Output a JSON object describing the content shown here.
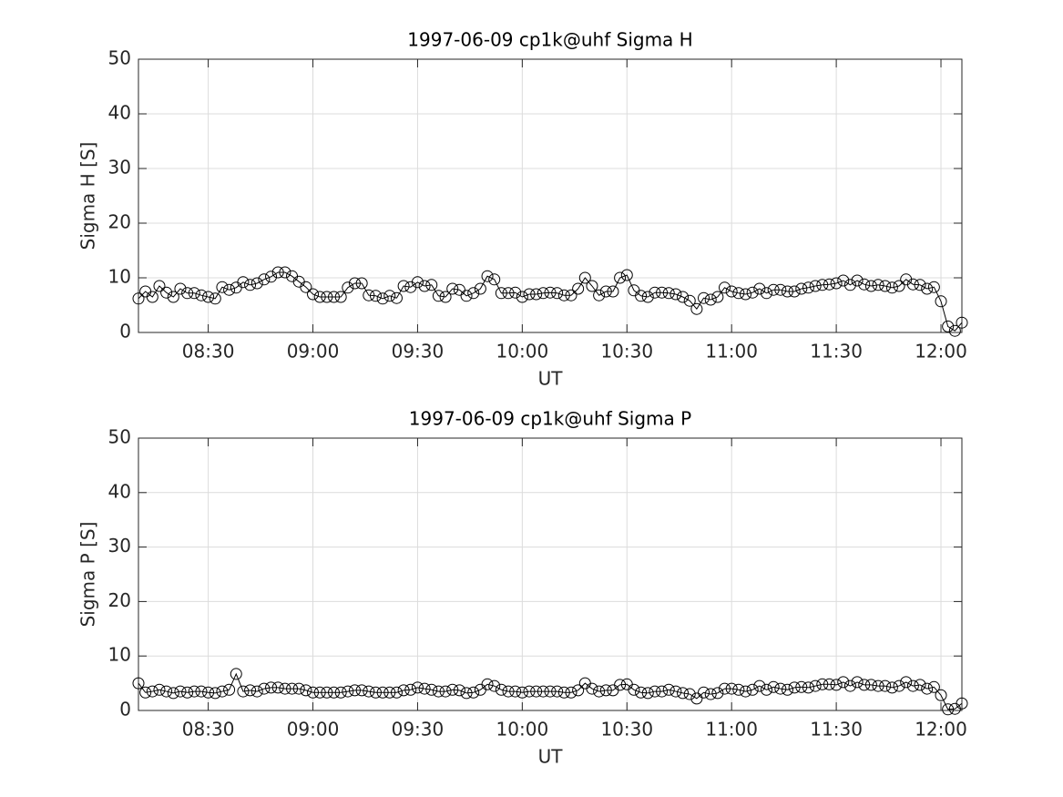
{
  "chart_data": [
    {
      "type": "line",
      "title": "1997-06-09  cp1k@uhf Sigma H",
      "x_label": "UT",
      "y_label": "Sigma H [S]",
      "x": [
        "08:10",
        "08:12",
        "08:14",
        "08:16",
        "08:18",
        "08:20",
        "08:22",
        "08:24",
        "08:26",
        "08:28",
        "08:30",
        "08:32",
        "08:34",
        "08:36",
        "08:38",
        "08:40",
        "08:42",
        "08:44",
        "08:46",
        "08:48",
        "08:50",
        "08:52",
        "08:54",
        "08:56",
        "08:58",
        "09:00",
        "09:02",
        "09:04",
        "09:06",
        "09:08",
        "09:10",
        "09:12",
        "09:14",
        "09:16",
        "09:18",
        "09:20",
        "09:22",
        "09:24",
        "09:26",
        "09:28",
        "09:30",
        "09:32",
        "09:34",
        "09:36",
        "09:38",
        "09:40",
        "09:42",
        "09:44",
        "09:46",
        "09:48",
        "09:50",
        "09:52",
        "09:54",
        "09:56",
        "09:58",
        "10:00",
        "10:02",
        "10:04",
        "10:06",
        "10:08",
        "10:10",
        "10:12",
        "10:14",
        "10:16",
        "10:18",
        "10:20",
        "10:22",
        "10:24",
        "10:26",
        "10:28",
        "10:30",
        "10:32",
        "10:34",
        "10:36",
        "10:38",
        "10:40",
        "10:42",
        "10:44",
        "10:46",
        "10:48",
        "10:50",
        "10:52",
        "10:54",
        "10:56",
        "10:58",
        "11:00",
        "11:02",
        "11:04",
        "11:06",
        "11:08",
        "11:10",
        "11:12",
        "11:14",
        "11:16",
        "11:18",
        "11:20",
        "11:22",
        "11:24",
        "11:26",
        "11:28",
        "11:30",
        "11:32",
        "11:34",
        "11:36",
        "11:38",
        "11:40",
        "11:42",
        "11:44",
        "11:46",
        "11:48",
        "11:50",
        "11:52",
        "11:54",
        "11:56",
        "11:58",
        "12:00",
        "12:02",
        "12:04",
        "12:06"
      ],
      "values": [
        6.2,
        7.5,
        6.5,
        8.5,
        7.3,
        6.5,
        8,
        7.2,
        7.2,
        6.8,
        6.5,
        6.2,
        8.3,
        7.8,
        8.2,
        9.2,
        8.7,
        9,
        9.7,
        10.2,
        11,
        11,
        10.3,
        9.3,
        8.3,
        7,
        6.5,
        6.5,
        6.5,
        6.5,
        8.2,
        9,
        9,
        6.8,
        6.7,
        6.2,
        6.7,
        6.3,
        8.5,
        8.3,
        9.2,
        8.5,
        8.7,
        6.7,
        6.5,
        8,
        7.8,
        6.7,
        7.2,
        8,
        10.3,
        9.7,
        7.2,
        7.2,
        7.3,
        6.5,
        7,
        7,
        7.2,
        7.3,
        7.2,
        6.8,
        6.8,
        8,
        10,
        8.5,
        6.8,
        7.5,
        7.5,
        10,
        10.5,
        7.7,
        6.7,
        6.5,
        7.3,
        7.3,
        7.2,
        7,
        6.5,
        5.8,
        4.3,
        6.3,
        6,
        6.5,
        8.2,
        7.5,
        7.2,
        7,
        7.3,
        8,
        7.2,
        7.8,
        7.8,
        7.5,
        7.5,
        8,
        8.2,
        8.5,
        8.7,
        8.8,
        9,
        9.5,
        8.7,
        9.5,
        8.8,
        8.5,
        8.7,
        8.5,
        8.2,
        8.5,
        9.7,
        8.8,
        8.7,
        8,
        8.3,
        5.7,
        1.1,
        0.3,
        1.8
      ],
      "color": "#000000",
      "marker": "o",
      "xlim": [
        "08:10",
        "12:06"
      ],
      "xticks": [
        "08:30",
        "09:00",
        "09:30",
        "10:00",
        "10:30",
        "11:00",
        "11:30",
        "12:00"
      ],
      "ylim": [
        0,
        50
      ],
      "yticks": [
        0,
        10,
        20,
        30,
        40,
        50
      ],
      "grid": true
    },
    {
      "type": "line",
      "title": "1997-06-09  cp1k@uhf Sigma P",
      "x_label": "UT",
      "y_label": "Sigma P [S]",
      "x": [
        "08:10",
        "08:12",
        "08:14",
        "08:16",
        "08:18",
        "08:20",
        "08:22",
        "08:24",
        "08:26",
        "08:28",
        "08:30",
        "08:32",
        "08:34",
        "08:36",
        "08:38",
        "08:40",
        "08:42",
        "08:44",
        "08:46",
        "08:48",
        "08:50",
        "08:52",
        "08:54",
        "08:56",
        "08:58",
        "09:00",
        "09:02",
        "09:04",
        "09:06",
        "09:08",
        "09:10",
        "09:12",
        "09:14",
        "09:16",
        "09:18",
        "09:20",
        "09:22",
        "09:24",
        "09:26",
        "09:28",
        "09:30",
        "09:32",
        "09:34",
        "09:36",
        "09:38",
        "09:40",
        "09:42",
        "09:44",
        "09:46",
        "09:48",
        "09:50",
        "09:52",
        "09:54",
        "09:56",
        "09:58",
        "10:00",
        "10:02",
        "10:04",
        "10:06",
        "10:08",
        "10:10",
        "10:12",
        "10:14",
        "10:16",
        "10:18",
        "10:20",
        "10:22",
        "10:24",
        "10:26",
        "10:28",
        "10:30",
        "10:32",
        "10:34",
        "10:36",
        "10:38",
        "10:40",
        "10:42",
        "10:44",
        "10:46",
        "10:48",
        "10:50",
        "10:52",
        "10:54",
        "10:56",
        "10:58",
        "11:00",
        "11:02",
        "11:04",
        "11:06",
        "11:08",
        "11:10",
        "11:12",
        "11:14",
        "11:16",
        "11:18",
        "11:20",
        "11:22",
        "11:24",
        "11:26",
        "11:28",
        "11:30",
        "11:32",
        "11:34",
        "11:36",
        "11:38",
        "11:40",
        "11:42",
        "11:44",
        "11:46",
        "11:48",
        "11:50",
        "11:52",
        "11:54",
        "11:56",
        "11:58",
        "12:00",
        "12:02",
        "12:04",
        "12:06"
      ],
      "values": [
        5,
        3.3,
        3.5,
        3.8,
        3.5,
        3.2,
        3.5,
        3.3,
        3.5,
        3.5,
        3.3,
        3.2,
        3.5,
        3.8,
        6.7,
        3.5,
        3.7,
        3.5,
        4,
        4.2,
        4.2,
        4,
        4,
        4,
        3.7,
        3.3,
        3.3,
        3.3,
        3.3,
        3.3,
        3.5,
        3.7,
        3.7,
        3.5,
        3.3,
        3.3,
        3.3,
        3.3,
        3.7,
        3.8,
        4.2,
        4,
        3.8,
        3.5,
        3.5,
        3.8,
        3.7,
        3.2,
        3.3,
        3.8,
        4.8,
        4.5,
        3.8,
        3.5,
        3.5,
        3.3,
        3.5,
        3.5,
        3.5,
        3.5,
        3.5,
        3.3,
        3.3,
        3.7,
        5,
        4,
        3.5,
        3.7,
        3.7,
        4.7,
        4.8,
        3.8,
        3.3,
        3.2,
        3.5,
        3.5,
        3.8,
        3.5,
        3.2,
        3,
        2.2,
        3.3,
        3,
        3.2,
        4,
        4,
        3.8,
        3.5,
        3.8,
        4.5,
        3.8,
        4.3,
        4,
        3.8,
        4.2,
        4.3,
        4.2,
        4.5,
        4.8,
        4.8,
        4.7,
        5.2,
        4.5,
        5.2,
        4.7,
        4.7,
        4.5,
        4.5,
        4.2,
        4.5,
        5.2,
        4.5,
        4.7,
        4,
        4.3,
        2.8,
        0.2,
        0.3,
        1.3
      ],
      "color": "#000000",
      "marker": "o",
      "xlim": [
        "08:10",
        "12:06"
      ],
      "xticks": [
        "08:30",
        "09:00",
        "09:30",
        "10:00",
        "10:30",
        "11:00",
        "11:30",
        "12:00"
      ],
      "ylim": [
        0,
        50
      ],
      "yticks": [
        0,
        10,
        20,
        30,
        40,
        50
      ],
      "grid": true
    }
  ]
}
